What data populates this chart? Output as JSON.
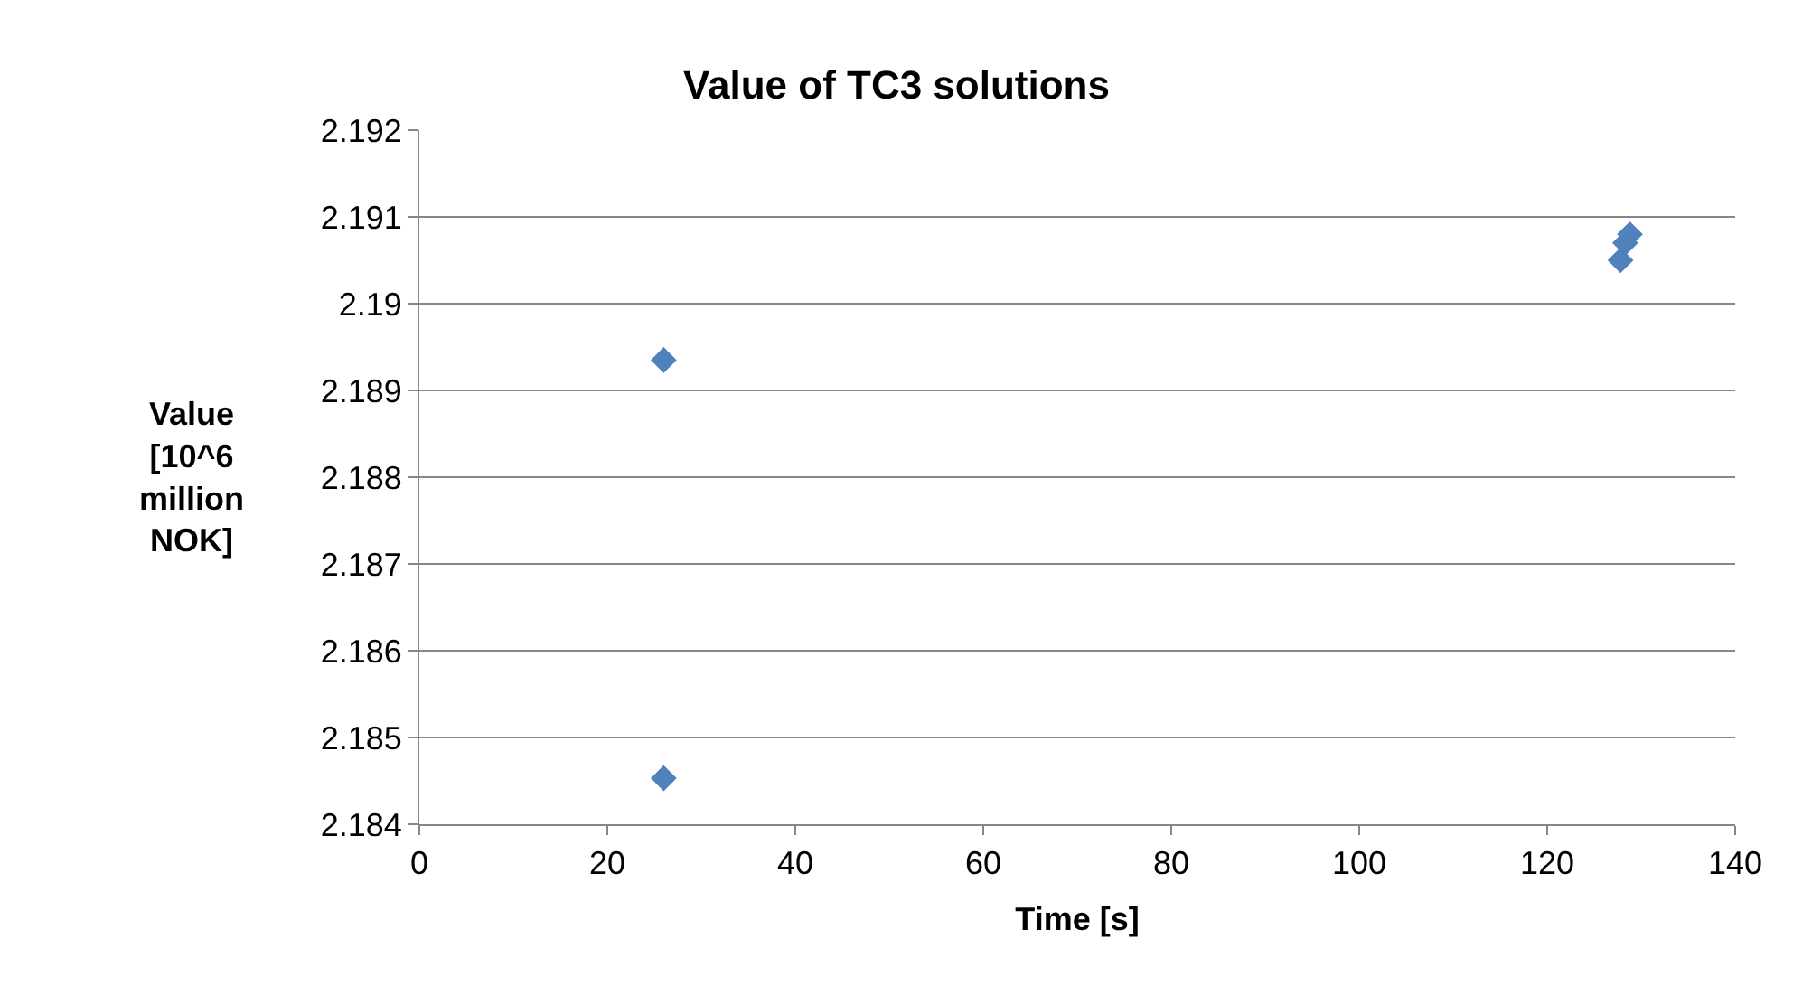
{
  "chart_data": {
    "type": "scatter",
    "title": "Value of TC3 solutions",
    "xlabel": "Time [s]",
    "ylabel": "Value\n[10^6\nmillion\nNOK]",
    "x": [
      26,
      26,
      127.8,
      128.3,
      128.8
    ],
    "series": [
      {
        "color": "#4f81bd",
        "values": [
          2.18935,
          2.18453,
          2.1905,
          2.1907,
          2.1908
        ]
      }
    ],
    "marker": "diamond",
    "xlim": [
      0,
      140
    ],
    "xticks": [
      0,
      20,
      40,
      60,
      80,
      100,
      120,
      140
    ],
    "ylim": [
      2.184,
      2.192
    ],
    "yticks": [
      2.184,
      2.185,
      2.186,
      2.187,
      2.188,
      2.189,
      2.19,
      2.191,
      2.192
    ],
    "grid": "y"
  }
}
